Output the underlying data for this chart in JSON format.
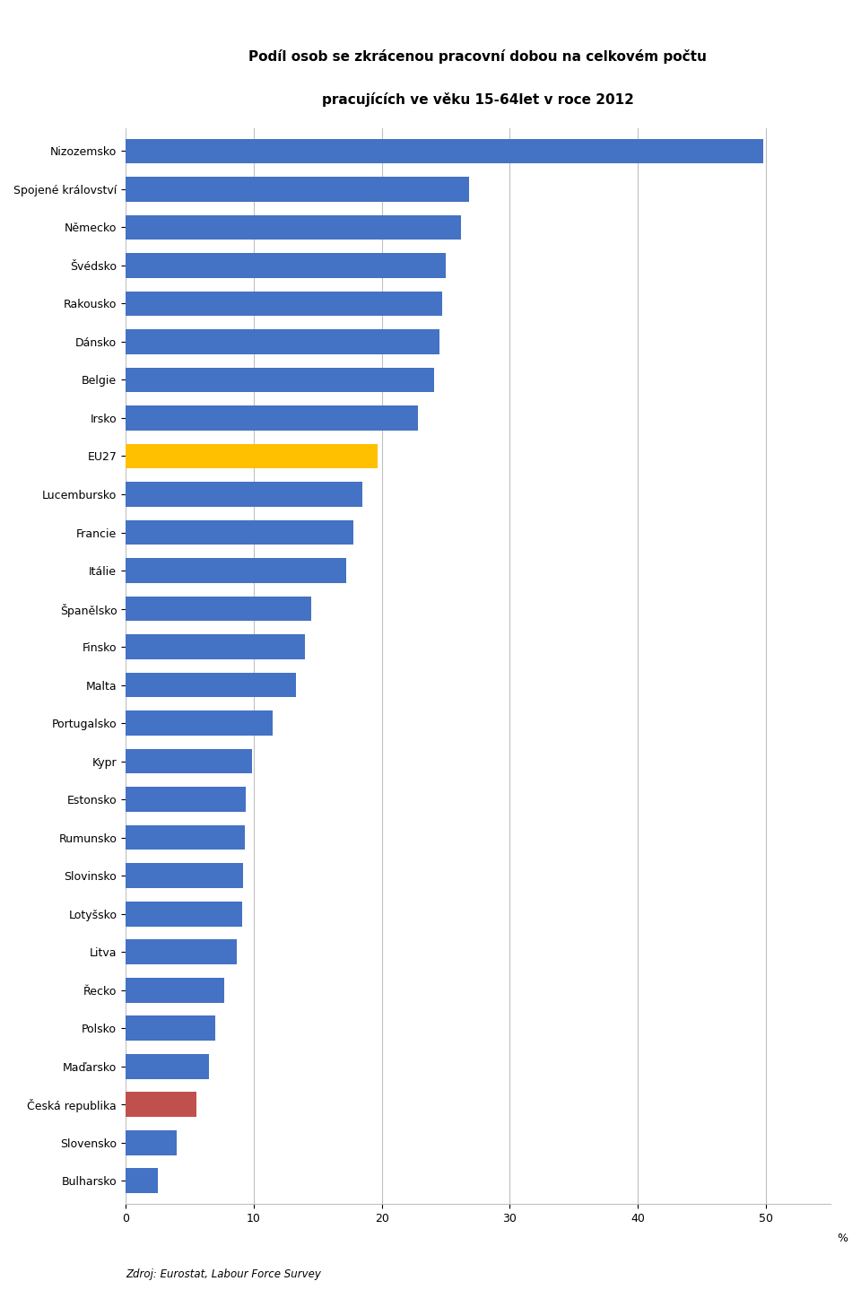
{
  "title_line1": "Podíl osob se zkrácenou pracovní dobou na celkovém počtu",
  "title_line2": "pracujících ve věku 15-64let v roce 2012",
  "source": "Zdroj: Eurostat, Labour Force Survey",
  "xlabel": "%",
  "xlim": [
    0,
    55
  ],
  "xticks": [
    0,
    10,
    20,
    30,
    40,
    50
  ],
  "categories": [
    "Nizozemsko",
    "Spojené království",
    "Německo",
    "Švédsko",
    "Rakousko",
    "Dánsko",
    "Belgie",
    "Irsko",
    "EU27",
    "Lucembursko",
    "Francie",
    "Itálie",
    "Španělsko",
    "Finsko",
    "Malta",
    "Portugalsko",
    "Kypr",
    "Estonsko",
    "Rumunsko",
    "Slovinsko",
    "Lotyšsko",
    "Litva",
    "Řecko",
    "Polsko",
    "Maďarsko",
    "Česká republika",
    "Slovensko",
    "Bulharsko"
  ],
  "values": [
    49.8,
    26.8,
    26.2,
    25.0,
    24.7,
    24.5,
    24.1,
    22.8,
    19.7,
    18.5,
    17.8,
    17.2,
    14.5,
    14.0,
    13.3,
    11.5,
    9.9,
    9.4,
    9.3,
    9.2,
    9.1,
    8.7,
    7.7,
    7.0,
    6.5,
    5.5,
    4.0,
    2.5
  ],
  "bar_colors": [
    "#4472C4",
    "#4472C4",
    "#4472C4",
    "#4472C4",
    "#4472C4",
    "#4472C4",
    "#4472C4",
    "#4472C4",
    "#FFC000",
    "#4472C4",
    "#4472C4",
    "#4472C4",
    "#4472C4",
    "#4472C4",
    "#4472C4",
    "#4472C4",
    "#4472C4",
    "#4472C4",
    "#4472C4",
    "#4472C4",
    "#4472C4",
    "#4472C4",
    "#4472C4",
    "#4472C4",
    "#4472C4",
    "#C0504D",
    "#4472C4",
    "#4472C4"
  ],
  "background_color": "#FFFFFF",
  "grid_color": "#BFBFBF",
  "title_fontsize": 11,
  "label_fontsize": 9,
  "tick_fontsize": 9,
  "source_fontsize": 8.5
}
